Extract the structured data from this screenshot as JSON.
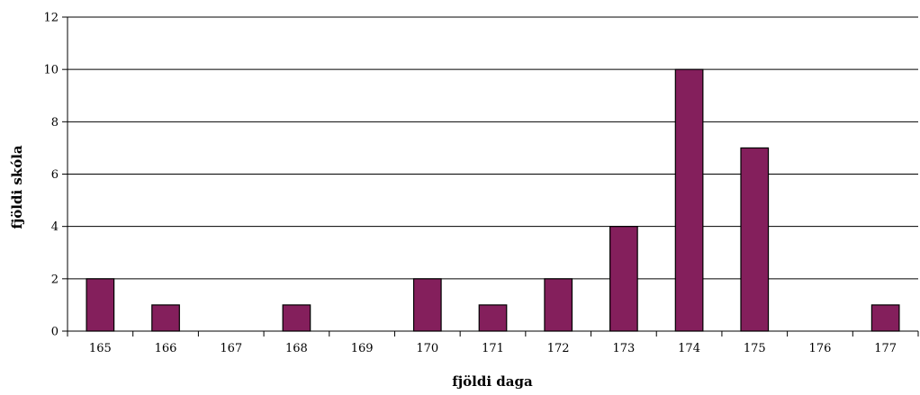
{
  "chart_data": {
    "type": "bar",
    "title": "",
    "xlabel": "fjöldi daga",
    "ylabel": "fjöldi skóla",
    "categories": [
      "165",
      "166",
      "167",
      "168",
      "169",
      "170",
      "171",
      "172",
      "173",
      "174",
      "175",
      "176",
      "177"
    ],
    "values": [
      2,
      1,
      0,
      1,
      0,
      2,
      1,
      2,
      4,
      10,
      7,
      0,
      1
    ],
    "ylim": [
      0,
      12
    ],
    "yticks": [
      0,
      2,
      4,
      6,
      8,
      10,
      12
    ],
    "grid": true,
    "legend": "none",
    "colors": {
      "bar_fill": "#841F5C",
      "bar_stroke": "#000000",
      "grid": "#000000",
      "axis": "#000000"
    }
  }
}
